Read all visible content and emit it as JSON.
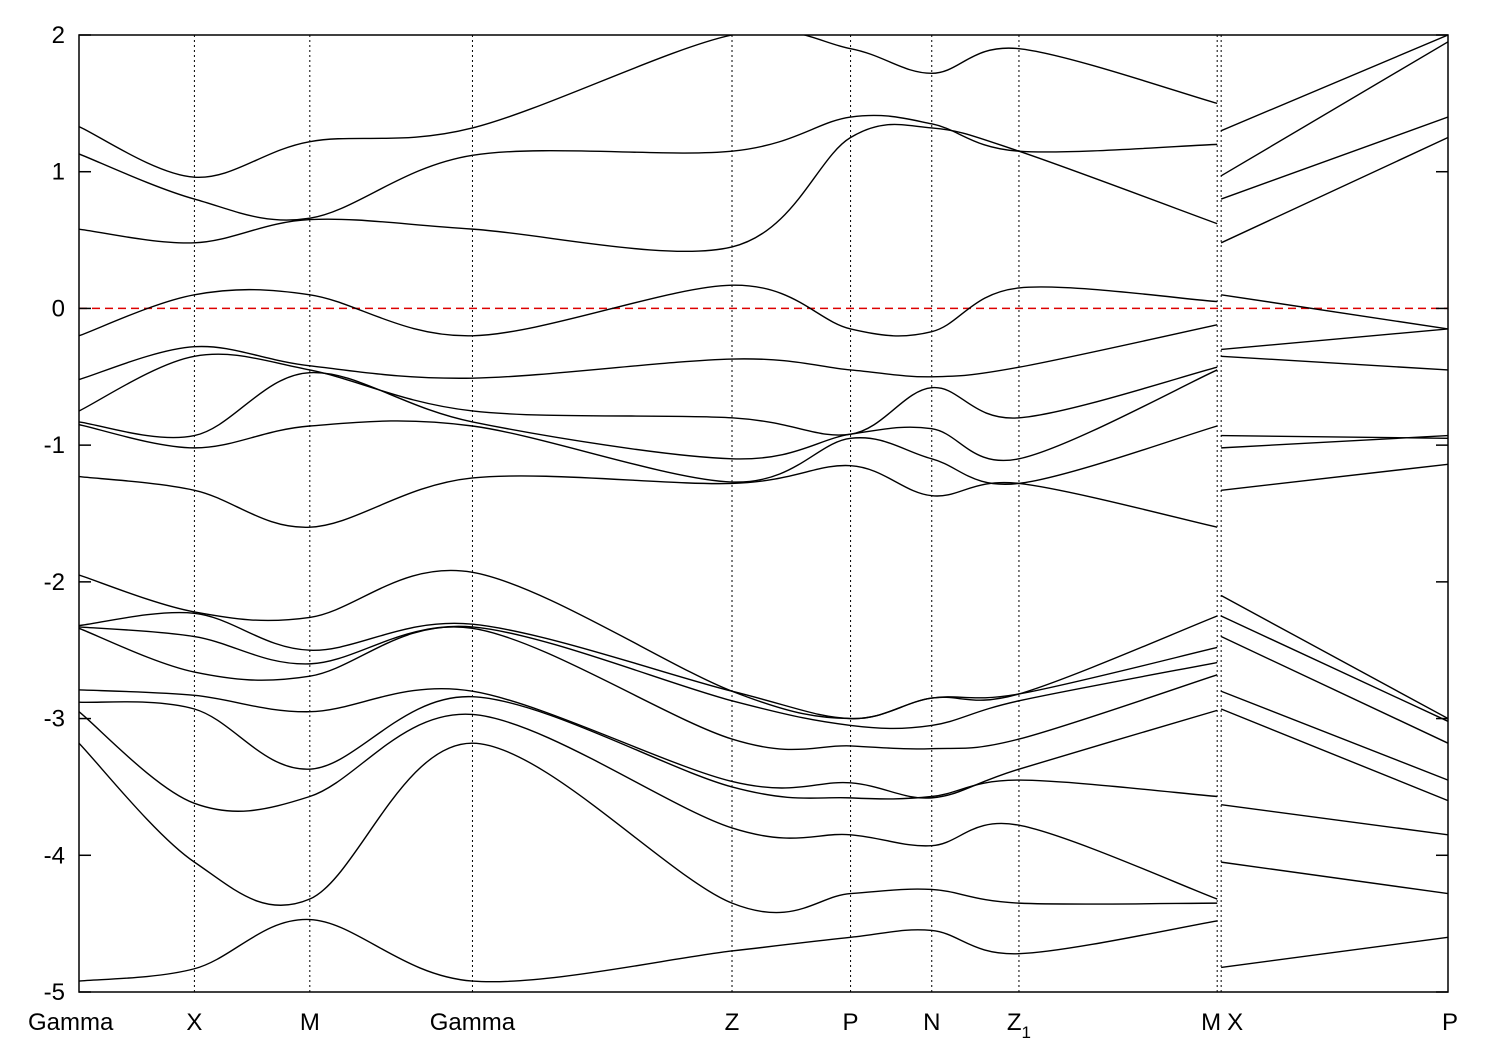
{
  "chart_data": {
    "type": "line",
    "title": "",
    "xlabel": "",
    "ylabel": "",
    "ylim": [
      -5,
      2
    ],
    "xlim": [
      0,
      1
    ],
    "yticks": [
      -5,
      -4,
      -3,
      -2,
      -1,
      0,
      1,
      2
    ],
    "ytick_labels": [
      "-5",
      "-4",
      "-3",
      "-2",
      "-1",
      "0",
      "1",
      "2"
    ],
    "kpoints": [
      {
        "label": "Gamma",
        "x": 0.0
      },
      {
        "label": "X",
        "x": 0.0843
      },
      {
        "label": "M",
        "x": 0.1686
      },
      {
        "label": "Gamma",
        "x": 0.2874
      },
      {
        "label": "Z",
        "x": 0.477
      },
      {
        "label": "P",
        "x": 0.5636
      },
      {
        "label": "N",
        "x": 0.6229
      },
      {
        "label": "Z",
        "sub": "1",
        "x": 0.6866
      },
      {
        "label": "M",
        "x": 0.8314
      },
      {
        "label": "X",
        "x": 0.8343
      },
      {
        "label": "P",
        "x": 1.0
      }
    ],
    "fermi_level": 0,
    "grid": "vertical dotted lines at high-symmetry points",
    "legend": "none",
    "colors": {
      "bands": "#000000",
      "fermi": "#dd0000"
    },
    "path_break_after_x": 0.8314,
    "series": [
      {
        "x": [
          0,
          0.0843,
          0.1686,
          0.2874,
          0.477,
          0.5636,
          0.6229,
          0.6866,
          0.8314
        ],
        "values": [
          -4.92,
          -4.83,
          -4.47,
          -4.92,
          -4.7,
          -4.6,
          -4.55,
          -4.72,
          -4.48
        ]
      },
      {
        "x": [
          0,
          0.0843,
          0.1686,
          0.2874,
          0.477,
          0.5636,
          0.6229,
          0.6866,
          0.8314
        ],
        "values": [
          -3.18,
          -4.05,
          -4.32,
          -3.18,
          -4.35,
          -4.28,
          -4.25,
          -4.35,
          -4.35
        ]
      },
      {
        "x": [
          0,
          0.0843,
          0.1686,
          0.2874,
          0.477,
          0.5636,
          0.6229,
          0.6866,
          0.8314
        ],
        "values": [
          -2.95,
          -3.62,
          -3.57,
          -2.97,
          -3.8,
          -3.85,
          -3.93,
          -3.78,
          -4.32
        ]
      },
      {
        "x": [
          0,
          0.0843,
          0.1686,
          0.2874,
          0.477,
          0.5636,
          0.6229,
          0.6866,
          0.8314
        ],
        "values": [
          -2.88,
          -2.93,
          -3.37,
          -2.84,
          -3.5,
          -3.58,
          -3.57,
          -3.45,
          -3.57
        ]
      },
      {
        "x": [
          0,
          0.0843,
          0.1686,
          0.2874,
          0.477,
          0.5636,
          0.6229,
          0.6866,
          0.8314
        ],
        "values": [
          -2.79,
          -2.83,
          -2.95,
          -2.8,
          -3.46,
          -3.47,
          -3.58,
          -3.37,
          -2.94
        ]
      },
      {
        "x": [
          0,
          0.0843,
          0.1686,
          0.2874,
          0.477,
          0.5636,
          0.6229,
          0.6866,
          0.8314
        ],
        "values": [
          -2.34,
          -2.66,
          -2.69,
          -2.34,
          -3.15,
          -3.2,
          -3.22,
          -3.15,
          -2.68
        ]
      },
      {
        "x": [
          0,
          0.0843,
          0.1686,
          0.2874,
          0.477,
          0.5636,
          0.6229,
          0.6866,
          0.8314
        ],
        "values": [
          -2.33,
          -2.4,
          -2.6,
          -2.33,
          -2.87,
          -3.05,
          -3.05,
          -2.87,
          -2.59
        ]
      },
      {
        "x": [
          0,
          0.0843,
          0.1686,
          0.2874,
          0.477,
          0.5636,
          0.6229,
          0.6866,
          0.8314
        ],
        "values": [
          -2.32,
          -2.23,
          -2.5,
          -2.31,
          -2.8,
          -3.0,
          -2.85,
          -2.82,
          -2.48
        ]
      },
      {
        "x": [
          0,
          0.0843,
          0.1686,
          0.2874,
          0.477,
          0.5636,
          0.6229,
          0.6866,
          0.8314
        ],
        "values": [
          -1.95,
          -2.22,
          -2.26,
          -1.93,
          -2.8,
          -3.0,
          -2.85,
          -2.82,
          -2.25
        ]
      },
      {
        "x": [
          0,
          0.0843,
          0.1686,
          0.2874,
          0.477,
          0.5636,
          0.6229,
          0.6866,
          0.8314
        ],
        "values": [
          -1.23,
          -1.33,
          -1.6,
          -1.24,
          -1.28,
          -1.15,
          -1.37,
          -1.28,
          -1.6
        ]
      },
      {
        "x": [
          0,
          0.0843,
          0.1686,
          0.2874,
          0.477,
          0.5636,
          0.6229,
          0.6866,
          0.8314
        ],
        "values": [
          -0.85,
          -1.02,
          -0.86,
          -0.86,
          -1.27,
          -0.95,
          -1.1,
          -1.28,
          -0.86
        ]
      },
      {
        "x": [
          0,
          0.0843,
          0.1686,
          0.2874,
          0.477,
          0.5636,
          0.6229,
          0.6866,
          0.8314
        ],
        "values": [
          -0.83,
          -0.93,
          -0.47,
          -0.83,
          -1.1,
          -0.92,
          -0.88,
          -1.1,
          -0.45
        ]
      },
      {
        "x": [
          0,
          0.0843,
          0.1686,
          0.2874,
          0.477,
          0.5636,
          0.6229,
          0.6866,
          0.8314
        ],
        "values": [
          -0.75,
          -0.35,
          -0.45,
          -0.75,
          -0.8,
          -0.92,
          -0.58,
          -0.8,
          -0.43
        ]
      },
      {
        "x": [
          0,
          0.0843,
          0.1686,
          0.2874,
          0.477,
          0.5636,
          0.6229,
          0.6866,
          0.8314
        ],
        "values": [
          -0.52,
          -0.28,
          -0.42,
          -0.51,
          -0.37,
          -0.45,
          -0.5,
          -0.43,
          -0.12
        ]
      },
      {
        "x": [
          0,
          0.0843,
          0.1686,
          0.2874,
          0.477,
          0.5636,
          0.6229,
          0.6866,
          0.8314
        ],
        "values": [
          -0.2,
          0.1,
          0.1,
          -0.2,
          0.17,
          -0.15,
          -0.17,
          0.15,
          0.05
        ]
      },
      {
        "x": [
          0,
          0.0843,
          0.1686,
          0.2874,
          0.477,
          0.5636,
          0.6229,
          0.6866,
          0.8314
        ],
        "values": [
          0.58,
          0.48,
          0.65,
          0.58,
          0.45,
          1.25,
          1.32,
          1.15,
          0.62
        ]
      },
      {
        "x": [
          0,
          0.0843,
          0.1686,
          0.2874,
          0.477,
          0.5636,
          0.6229,
          0.6866,
          0.8314
        ],
        "values": [
          1.13,
          0.8,
          0.66,
          1.12,
          1.15,
          1.4,
          1.35,
          1.15,
          1.2
        ]
      },
      {
        "x": [
          0,
          0.0843,
          0.1686,
          0.2874,
          0.477,
          0.5636,
          0.6229,
          0.6866,
          0.8314
        ],
        "values": [
          1.33,
          0.96,
          1.22,
          1.32,
          2.0,
          1.9,
          1.72,
          1.9,
          1.5
        ]
      },
      {
        "x": [
          0.8343,
          1.0
        ],
        "values": [
          -4.82,
          -4.6
        ]
      },
      {
        "x": [
          0.8343,
          1.0
        ],
        "values": [
          -4.05,
          -4.28
        ]
      },
      {
        "x": [
          0.8343,
          1.0
        ],
        "values": [
          -3.63,
          -3.85
        ]
      },
      {
        "x": [
          0.8343,
          1.0
        ],
        "values": [
          -2.93,
          -3.6
        ]
      },
      {
        "x": [
          0.8343,
          1.0
        ],
        "values": [
          -2.8,
          -3.45
        ]
      },
      {
        "x": [
          0.8343,
          1.0
        ],
        "values": [
          -2.4,
          -3.18
        ]
      },
      {
        "x": [
          0.8343,
          1.0
        ],
        "values": [
          -2.25,
          -3.02
        ]
      },
      {
        "x": [
          0.8343,
          1.0
        ],
        "values": [
          -2.1,
          -3.0
        ]
      },
      {
        "x": [
          0.8343,
          1.0
        ],
        "values": [
          -1.33,
          -1.14
        ]
      },
      {
        "x": [
          0.8343,
          1.0
        ],
        "values": [
          -1.02,
          -0.93
        ]
      },
      {
        "x": [
          0.8343,
          1.0
        ],
        "values": [
          -0.93,
          -0.95
        ]
      },
      {
        "x": [
          0.8343,
          1.0
        ],
        "values": [
          -0.35,
          -0.45
        ]
      },
      {
        "x": [
          0.8343,
          1.0
        ],
        "values": [
          -0.3,
          -0.15
        ]
      },
      {
        "x": [
          0.8343,
          1.0
        ],
        "values": [
          0.1,
          -0.15
        ]
      },
      {
        "x": [
          0.8343,
          1.0
        ],
        "values": [
          0.48,
          1.25
        ]
      },
      {
        "x": [
          0.8343,
          1.0
        ],
        "values": [
          0.8,
          1.4
        ]
      },
      {
        "x": [
          0.8343,
          1.0
        ],
        "values": [
          0.97,
          1.95
        ]
      },
      {
        "x": [
          0.8343,
          1.0
        ],
        "values": [
          1.3,
          2.0
        ]
      }
    ]
  }
}
